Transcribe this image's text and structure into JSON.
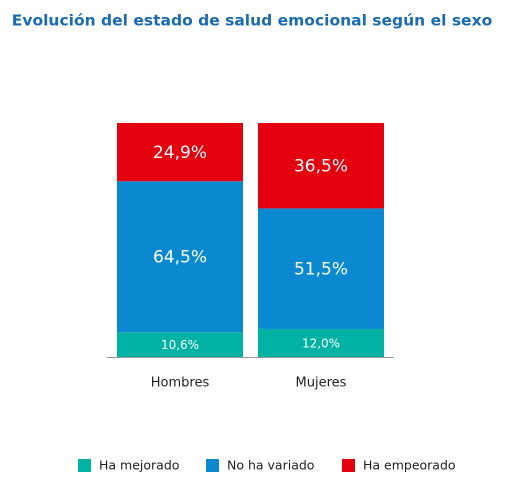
{
  "chart_data": {
    "type": "stacked_bar",
    "title": "Evolución del estado de salud emocional según el sexo",
    "categories": [
      "Hombres",
      "Mujeres"
    ],
    "series": [
      {
        "name": "Ha mejorado",
        "color": "#00b2a3",
        "values": [
          10.6,
          12.0
        ],
        "value_labels": [
          "10,6%",
          "12,0%"
        ]
      },
      {
        "name": "No ha variado",
        "color": "#0a89d0",
        "values": [
          64.5,
          51.5
        ],
        "value_labels": [
          "64,5%",
          "51,5%"
        ]
      },
      {
        "name": "Ha empeorado",
        "color": "#e5000f",
        "values": [
          24.9,
          36.5
        ],
        "value_labels": [
          "24,9%",
          "36,5%"
        ]
      }
    ],
    "legend": "bottom"
  }
}
